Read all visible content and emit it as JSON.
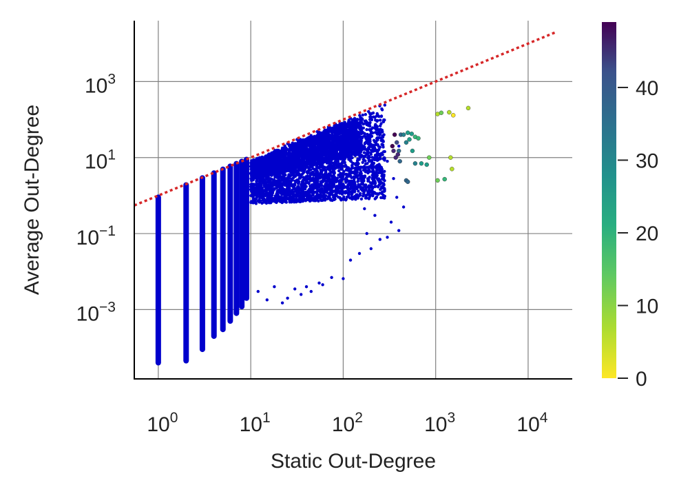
{
  "chart_data": {
    "type": "scatter",
    "xlabel": "Static Out-Degree",
    "ylabel": "Average Out-Degree",
    "xscale": "log",
    "yscale": "log",
    "xlim": [
      0.55,
      30000
    ],
    "ylim": [
      1.5e-05,
      40000
    ],
    "grid": true,
    "x_ticks": [
      {
        "value": 1,
        "base": "10",
        "exp": "0"
      },
      {
        "value": 10,
        "base": "10",
        "exp": "1"
      },
      {
        "value": 100,
        "base": "10",
        "exp": "2"
      },
      {
        "value": 1000,
        "base": "10",
        "exp": "3"
      },
      {
        "value": 10000,
        "base": "10",
        "exp": "4"
      }
    ],
    "y_ticks": [
      {
        "value": 0.001,
        "base": "10",
        "exp": "−3"
      },
      {
        "value": 0.1,
        "base": "10",
        "exp": "−1"
      },
      {
        "value": 10,
        "base": "10",
        "exp": "1"
      },
      {
        "value": 1000,
        "base": "10",
        "exp": "3"
      }
    ],
    "reference_line": {
      "style": "dotted",
      "color": "#d62728",
      "relation": "y = x",
      "x_range": [
        0.55,
        20000
      ]
    },
    "main_series": {
      "color": "#0000cc",
      "columns": [
        {
          "x": 1,
          "y_range": [
            4e-05,
            0.9
          ]
        },
        {
          "x": 2,
          "y_range": [
            4.5e-05,
            1.9
          ]
        },
        {
          "x": 3,
          "y_range": [
            9e-05,
            2.9
          ]
        },
        {
          "x": 4,
          "y_range": [
            0.0002,
            3.9
          ]
        },
        {
          "x": 5,
          "y_range": [
            0.0003,
            4.9
          ]
        },
        {
          "x": 6,
          "y_range": [
            0.0005,
            5.9
          ]
        },
        {
          "x": 7,
          "y_range": [
            0.0008,
            6.9
          ]
        },
        {
          "x": 8,
          "y_range": [
            0.0012,
            7.9
          ]
        },
        {
          "x": 9,
          "y_range": [
            0.002,
            8.9
          ]
        }
      ],
      "scatter_points": [
        [
          12,
          0.003
        ],
        [
          15,
          0.0018
        ],
        [
          18,
          0.004
        ],
        [
          22,
          0.0015
        ],
        [
          25,
          0.002
        ],
        [
          30,
          0.0035
        ],
        [
          35,
          0.0025
        ],
        [
          40,
          0.004
        ],
        [
          45,
          0.003
        ],
        [
          55,
          0.005
        ],
        [
          60,
          0.0045
        ],
        [
          75,
          0.007
        ],
        [
          100,
          0.0065
        ],
        [
          120,
          0.02
        ],
        [
          200,
          0.04
        ],
        [
          150,
          0.03
        ],
        [
          250,
          0.07
        ],
        [
          300,
          0.08
        ],
        [
          180,
          0.1
        ],
        [
          400,
          0.12
        ],
        [
          330,
          0.2
        ],
        [
          220,
          0.3
        ],
        [
          170,
          0.45
        ],
        [
          450,
          0.5
        ],
        [
          380,
          0.9
        ],
        [
          280,
          1.5
        ],
        [
          350,
          2.8
        ],
        [
          260,
          5
        ],
        [
          300,
          8
        ],
        [
          400,
          20
        ],
        [
          250,
          40
        ],
        [
          200,
          55
        ],
        [
          180,
          35
        ],
        [
          150,
          60
        ],
        [
          120,
          25
        ],
        [
          90,
          45
        ],
        [
          70,
          30
        ],
        [
          50,
          25
        ]
      ]
    },
    "colored_series": {
      "colormap": "viridis_r",
      "points": [
        [
          350,
          15,
          45
        ],
        [
          370,
          10,
          44
        ],
        [
          340,
          20,
          47
        ],
        [
          360,
          40,
          48
        ],
        [
          380,
          25,
          40
        ],
        [
          400,
          15,
          35
        ],
        [
          410,
          8,
          33
        ],
        [
          390,
          12,
          42
        ],
        [
          420,
          40,
          30
        ],
        [
          450,
          40,
          28
        ],
        [
          480,
          25,
          25
        ],
        [
          520,
          30,
          24
        ],
        [
          500,
          45,
          22
        ],
        [
          550,
          42,
          20
        ],
        [
          600,
          35,
          15
        ],
        [
          650,
          32,
          14
        ],
        [
          560,
          15,
          22
        ],
        [
          600,
          7,
          26
        ],
        [
          700,
          7,
          24
        ],
        [
          800,
          6.5,
          22
        ],
        [
          850,
          10,
          10
        ],
        [
          480,
          2.5,
          32
        ],
        [
          500,
          2.3,
          34
        ],
        [
          1050,
          140,
          8
        ],
        [
          1150,
          150,
          10
        ],
        [
          1400,
          155,
          4
        ],
        [
          1550,
          130,
          2
        ],
        [
          2250,
          200,
          4
        ],
        [
          1450,
          10,
          5
        ],
        [
          1500,
          5,
          6
        ],
        [
          1050,
          2.5,
          12
        ],
        [
          1250,
          2.7,
          14
        ]
      ]
    },
    "colorbar": {
      "colormap": "viridis_r",
      "range": [
        0,
        49
      ],
      "ticks": [
        "0",
        "10",
        "20",
        "30",
        "40"
      ]
    }
  }
}
